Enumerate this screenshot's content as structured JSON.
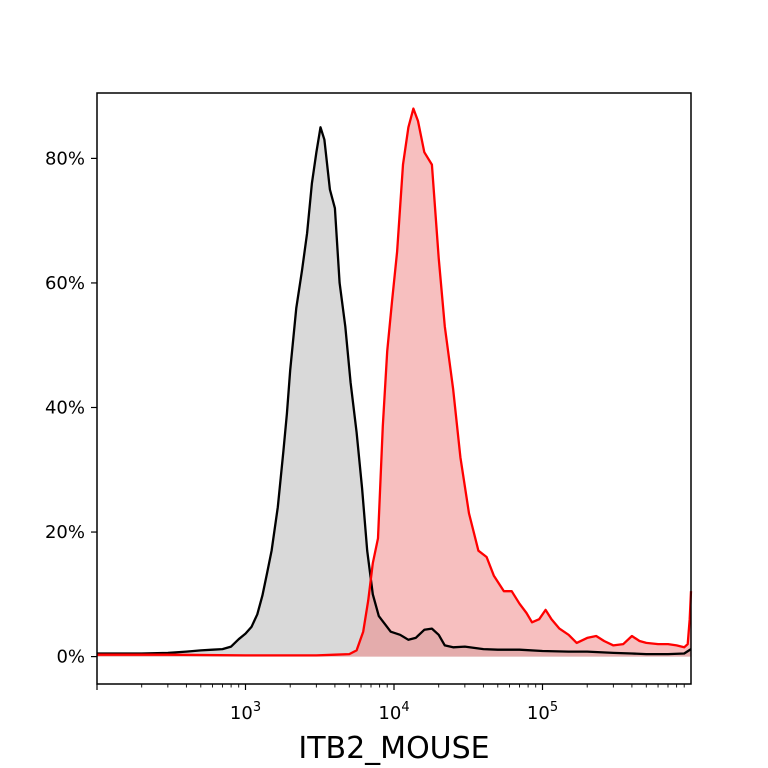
{
  "chart_data": {
    "type": "area",
    "title": "",
    "xlabel": "ITB2_MOUSE",
    "ylabel": "",
    "x_scale": "log",
    "xlim": [
      100,
      1000000
    ],
    "ylim": [
      -0.044,
      0.905
    ],
    "grid": false,
    "legend": "none",
    "x_ticks": [
      {
        "value": 1000,
        "base": "10",
        "exp": "3"
      },
      {
        "value": 10000,
        "base": "10",
        "exp": "4"
      },
      {
        "value": 100000,
        "base": "10",
        "exp": "5"
      }
    ],
    "y_ticks": [
      {
        "value": 0,
        "label": "0%"
      },
      {
        "value": 0.2,
        "label": "20%"
      },
      {
        "value": 0.4,
        "label": "40%"
      },
      {
        "value": 0.6,
        "label": "60%"
      },
      {
        "value": 0.8,
        "label": "80%"
      }
    ],
    "series": [
      {
        "color": "#000000",
        "fill": "#b3b3b3",
        "points": [
          [
            100,
            0.005
          ],
          [
            200,
            0.005
          ],
          [
            300,
            0.006
          ],
          [
            400,
            0.008
          ],
          [
            500,
            0.01
          ],
          [
            600,
            0.011
          ],
          [
            700,
            0.012
          ],
          [
            800,
            0.016
          ],
          [
            900,
            0.028
          ],
          [
            1000,
            0.037
          ],
          [
            1100,
            0.048
          ],
          [
            1200,
            0.068
          ],
          [
            1300,
            0.098
          ],
          [
            1400,
            0.135
          ],
          [
            1500,
            0.17
          ],
          [
            1650,
            0.24
          ],
          [
            1800,
            0.33
          ],
          [
            1900,
            0.39
          ],
          [
            2000,
            0.46
          ],
          [
            2200,
            0.56
          ],
          [
            2400,
            0.62
          ],
          [
            2600,
            0.68
          ],
          [
            2800,
            0.76
          ],
          [
            3000,
            0.81
          ],
          [
            3200,
            0.85
          ],
          [
            3400,
            0.83
          ],
          [
            3700,
            0.75
          ],
          [
            4000,
            0.72
          ],
          [
            4300,
            0.6
          ],
          [
            4700,
            0.53
          ],
          [
            5100,
            0.44
          ],
          [
            5600,
            0.36
          ],
          [
            6100,
            0.27
          ],
          [
            6600,
            0.17
          ],
          [
            7200,
            0.1
          ],
          [
            7900,
            0.065
          ],
          [
            8700,
            0.052
          ],
          [
            9500,
            0.04
          ],
          [
            11000,
            0.035
          ],
          [
            12500,
            0.027
          ],
          [
            14000,
            0.03
          ],
          [
            16000,
            0.043
          ],
          [
            18000,
            0.045
          ],
          [
            20000,
            0.035
          ],
          [
            22000,
            0.018
          ],
          [
            25000,
            0.015
          ],
          [
            30000,
            0.016
          ],
          [
            40000,
            0.012
          ],
          [
            50000,
            0.011
          ],
          [
            70000,
            0.011
          ],
          [
            100000,
            0.009
          ],
          [
            150000,
            0.008
          ],
          [
            200000,
            0.008
          ],
          [
            300000,
            0.006
          ],
          [
            400000,
            0.005
          ],
          [
            500000,
            0.004
          ],
          [
            700000,
            0.004
          ],
          [
            900000,
            0.005
          ],
          [
            1000000,
            0.012
          ]
        ]
      },
      {
        "color": "#ff0000",
        "fill": "#f08080",
        "points": [
          [
            100,
            0.003
          ],
          [
            300,
            0.003
          ],
          [
            1000,
            0.002
          ],
          [
            3000,
            0.002
          ],
          [
            4000,
            0.003
          ],
          [
            5000,
            0.004
          ],
          [
            5600,
            0.01
          ],
          [
            6200,
            0.04
          ],
          [
            6700,
            0.09
          ],
          [
            7200,
            0.15
          ],
          [
            7800,
            0.19
          ],
          [
            8400,
            0.37
          ],
          [
            9000,
            0.49
          ],
          [
            9700,
            0.57
          ],
          [
            10500,
            0.65
          ],
          [
            11500,
            0.79
          ],
          [
            12500,
            0.85
          ],
          [
            13500,
            0.88
          ],
          [
            14500,
            0.86
          ],
          [
            16000,
            0.81
          ],
          [
            18000,
            0.79
          ],
          [
            20000,
            0.64
          ],
          [
            22000,
            0.53
          ],
          [
            25000,
            0.43
          ],
          [
            28000,
            0.32
          ],
          [
            32000,
            0.23
          ],
          [
            37000,
            0.17
          ],
          [
            42000,
            0.16
          ],
          [
            47000,
            0.13
          ],
          [
            55000,
            0.105
          ],
          [
            62000,
            0.105
          ],
          [
            70000,
            0.085
          ],
          [
            78000,
            0.07
          ],
          [
            85000,
            0.055
          ],
          [
            95000,
            0.06
          ],
          [
            105000,
            0.075
          ],
          [
            115000,
            0.06
          ],
          [
            130000,
            0.045
          ],
          [
            150000,
            0.035
          ],
          [
            170000,
            0.022
          ],
          [
            200000,
            0.03
          ],
          [
            230000,
            0.033
          ],
          [
            260000,
            0.025
          ],
          [
            300000,
            0.018
          ],
          [
            350000,
            0.02
          ],
          [
            400000,
            0.033
          ],
          [
            450000,
            0.025
          ],
          [
            500000,
            0.022
          ],
          [
            600000,
            0.02
          ],
          [
            700000,
            0.02
          ],
          [
            800000,
            0.018
          ],
          [
            900000,
            0.015
          ],
          [
            950000,
            0.02
          ],
          [
            980000,
            0.06
          ],
          [
            1000000,
            0.105
          ]
        ]
      }
    ]
  }
}
